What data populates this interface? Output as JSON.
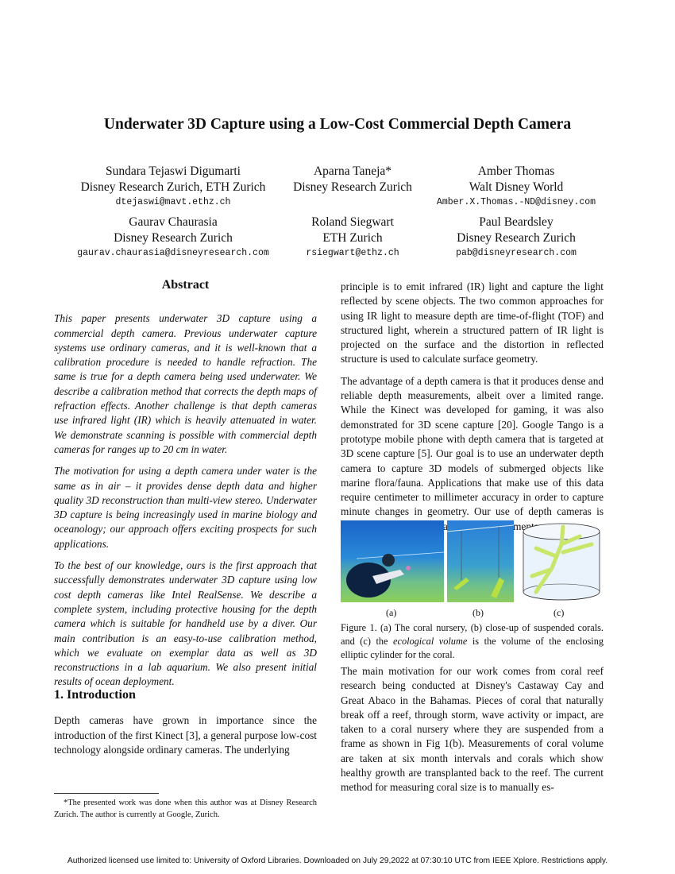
{
  "title": "Underwater 3D Capture using a Low-Cost Commercial Depth Camera",
  "authors": [
    {
      "name": "Sundara Tejaswi Digumarti",
      "affiliation": "Disney Research Zurich, ETH Zurich",
      "email": "dtejaswi@mavt.ethz.ch"
    },
    {
      "name": "Aparna Taneja*",
      "affiliation": "Disney Research Zurich",
      "email": ""
    },
    {
      "name": "Amber Thomas",
      "affiliation": "Walt Disney World",
      "email": "Amber.X.Thomas.-ND@disney.com"
    },
    {
      "name": "Gaurav Chaurasia",
      "affiliation": "Disney Research Zurich",
      "email": "gaurav.chaurasia@disneyresearch.com"
    },
    {
      "name": "Roland Siegwart",
      "affiliation": "ETH Zurich",
      "email": "rsiegwart@ethz.ch"
    },
    {
      "name": "Paul Beardsley",
      "affiliation": "Disney Research Zurich",
      "email": "pab@disneyresearch.com"
    }
  ],
  "abstract": {
    "heading": "Abstract",
    "paragraphs": [
      "This paper presents underwater 3D capture using a commercial depth camera. Previous underwater capture systems use ordinary cameras, and it is well-known that a calibration procedure is needed to handle refraction. The same is true for a depth camera being used underwater. We describe a calibration method that corrects the depth maps of refraction effects. Another challenge is that depth cameras use infrared light (IR) which is heavily attenuated in water. We demonstrate scanning is possible with commercial depth cameras for ranges up to 20 cm in water.",
      "The motivation for using a depth camera under water is the same as in air – it provides dense depth data and higher quality 3D reconstruction than multi-view stereo. Underwater 3D capture is being increasingly used in marine biology and oceanology; our approach offers exciting prospects for such applications.",
      "To the best of our knowledge, ours is the first approach that successfully demonstrates underwater 3D capture using low cost depth cameras like Intel RealSense. We describe a complete system, including protective housing for the depth camera which is suitable for handheld use by a diver. Our main contribution is an easy-to-use calibration method, which we evaluate on exemplar data as well as 3D reconstructions in a lab aquarium. We also present initial results of ocean deployment."
    ]
  },
  "introduction": {
    "heading": "1. Introduction",
    "paragraph": "Depth cameras have grown in importance since the introduction of the first Kinect [3], a general purpose low-cost technology alongside ordinary cameras. The underlying"
  },
  "footnote": "*The presented work was done when this author was at Disney Research Zurich. The author is currently at Google, Zurich.",
  "right_column": {
    "paragraphs_top": [
      "principle is to emit infrared (IR) light and capture the light reflected by scene objects. The two common approaches for using IR light to measure depth are time-of-flight (TOF) and structured light, wherein a structured pattern of IR light is projected on the surface and the distortion in reflected structure is used to calculate surface geometry.",
      "The advantage of a depth camera is that it produces dense and reliable depth measurements, albeit over a limited range. While the Kinect was developed for gaming, it was also demonstrated for 3D scene capture [20]. Google Tango is a prototype mobile phone with depth camera that is targeted at 3D scene capture [5]. Our goal is to use an underwater depth camera to capture 3D models of submerged objects like marine flora/fauna. Applications that make use of this data require centimeter to millimeter accuracy in order to capture minute changes in geometry. Our use of depth cameras is motivated by such high-accuracy requirements."
    ],
    "figure": {
      "sublabels": [
        "(a)",
        "(b)",
        "(c)"
      ],
      "caption_pre": "Figure 1. (a) The coral nursery, (b) close-up of suspended corals. and (c) the ",
      "caption_em": "ecological volume",
      "caption_post": " is the volume of the enclosing elliptic cylinder for the coral."
    },
    "paragraph_bottom": "The main motivation for our work comes from coral reef research being conducted at Disney's Castaway Cay and Great Abaco in the Bahamas. Pieces of coral that naturally break off a reef, through storm, wave activity or impact, are taken to a coral nursery where they are suspended from a frame as shown in Fig 1(b). Measurements of coral volume are taken at six month intervals and corals which show healthy growth are transplanted back to the reef. The current method for measuring coral size is to manually es-"
  },
  "footer": "Authorized licensed use limited to: University of Oxford Libraries. Downloaded on July 29,2022 at 07:30:10 UTC from IEEE Xplore.  Restrictions apply."
}
